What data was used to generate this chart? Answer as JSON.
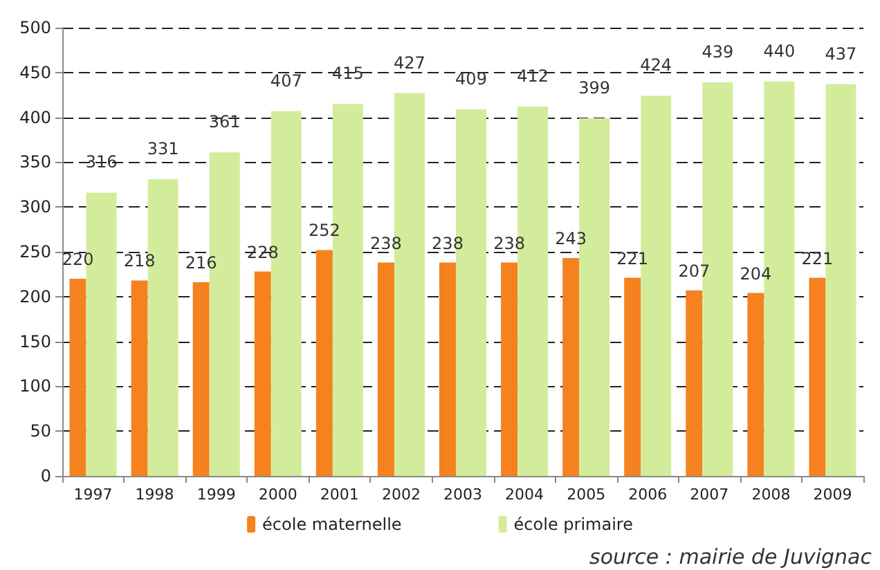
{
  "chart_data": {
    "type": "bar",
    "categories": [
      "1997",
      "1998",
      "1999",
      "2000",
      "2001",
      "2002",
      "2003",
      "2004",
      "2005",
      "2006",
      "2007",
      "2008",
      "2009"
    ],
    "series": [
      {
        "name": "école maternelle",
        "color": "#f5821f",
        "values": [
          220,
          218,
          216,
          228,
          252,
          238,
          238,
          238,
          243,
          221,
          207,
          204,
          221
        ]
      },
      {
        "name": "école primaire",
        "color": "#d3ec9c",
        "values": [
          316,
          331,
          361,
          407,
          415,
          427,
          409,
          412,
          399,
          424,
          439,
          440,
          437
        ]
      }
    ],
    "ylim": [
      0,
      500
    ],
    "yticks": [
      0,
      50,
      100,
      150,
      200,
      250,
      300,
      350,
      400,
      450,
      500
    ],
    "grid": "y",
    "legend": "bottom",
    "data_labels": true,
    "annotations": [
      "source : mairie de Juvignac"
    ]
  }
}
